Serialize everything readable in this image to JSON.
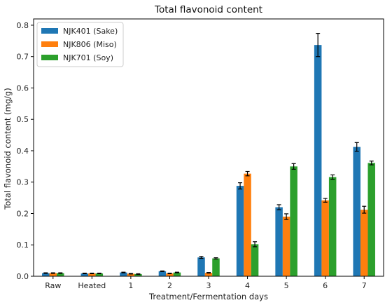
{
  "chart_data": {
    "type": "bar",
    "title": "Total flavonoid content",
    "xlabel": "Treatment/Fermentation days",
    "ylabel": "Total flavonoid content (mg/g)",
    "categories": [
      "Raw",
      "Heated",
      "1",
      "2",
      "3",
      "4",
      "5",
      "6",
      "7"
    ],
    "ylim": [
      0,
      0.82
    ],
    "yticks": [
      "0.0",
      "0.1",
      "0.2",
      "0.3",
      "0.4",
      "0.5",
      "0.6",
      "0.7",
      "0.8"
    ],
    "ytick_values": [
      0,
      0.1,
      0.2,
      0.3,
      0.4,
      0.5,
      0.6,
      0.7,
      0.8
    ],
    "legend_position": "top-left",
    "grid": false,
    "series": [
      {
        "name": "NJK401 (Sake)",
        "color": "#1f77b4",
        "values": [
          0.01,
          0.009,
          0.012,
          0.016,
          0.06,
          0.288,
          0.22,
          0.737,
          0.412
        ],
        "errors": [
          0.001,
          0.001,
          0.001,
          0.001,
          0.003,
          0.01,
          0.008,
          0.037,
          0.014
        ]
      },
      {
        "name": "NJK806 (Miso)",
        "color": "#ff7f0e",
        "values": [
          0.01,
          0.009,
          0.008,
          0.009,
          0.011,
          0.327,
          0.19,
          0.242,
          0.212
        ],
        "errors": [
          0.001,
          0.001,
          0.001,
          0.001,
          0.001,
          0.007,
          0.009,
          0.006,
          0.011
        ]
      },
      {
        "name": "NJK701 (Soy)",
        "color": "#2ca02c",
        "values": [
          0.01,
          0.009,
          0.007,
          0.012,
          0.057,
          0.102,
          0.35,
          0.316,
          0.361
        ],
        "errors": [
          0.001,
          0.001,
          0.001,
          0.001,
          0.002,
          0.008,
          0.009,
          0.007,
          0.006
        ]
      }
    ]
  }
}
